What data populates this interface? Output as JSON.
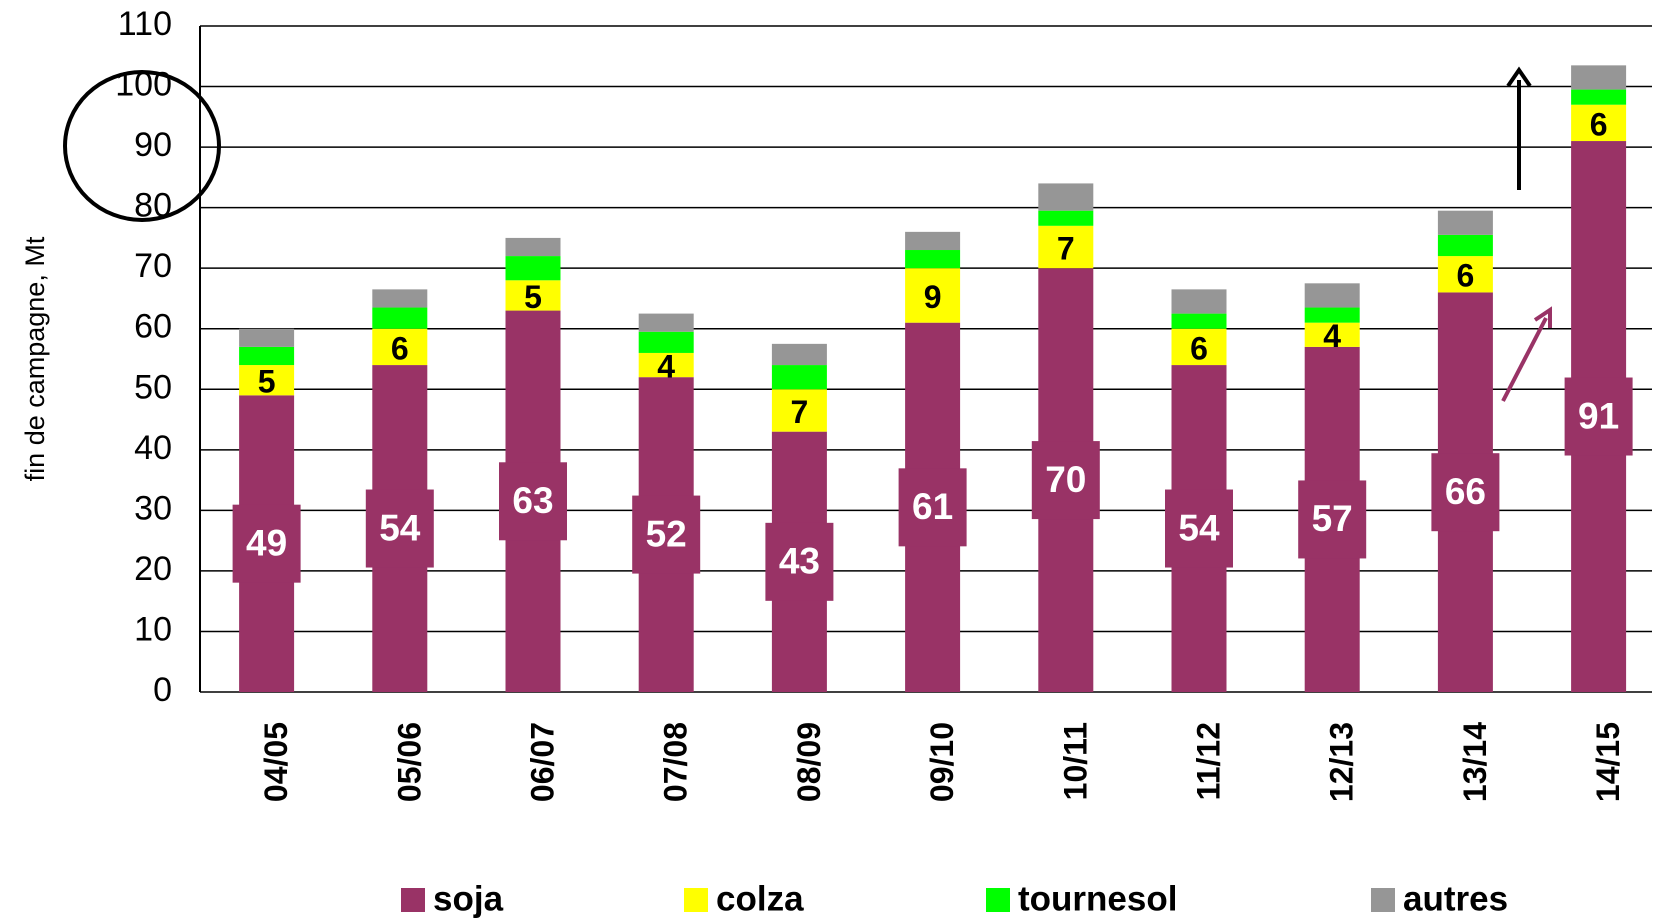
{
  "chart_data": {
    "type": "stacked_bar",
    "y_label": "fin de campagne, Mt",
    "categories": [
      "04/05",
      "05/06",
      "06/07",
      "07/08",
      "08/09",
      "09/10",
      "10/11",
      "11/12",
      "12/13",
      "13/14",
      "14/15"
    ],
    "series": [
      {
        "name": "soja",
        "color": "#993366",
        "show_labels": true,
        "values": [
          49,
          54,
          63,
          52,
          43,
          61,
          70,
          54,
          57,
          66,
          91
        ]
      },
      {
        "name": "colza",
        "color": "#ffff00",
        "show_labels": true,
        "values": [
          5,
          6,
          5,
          4,
          7,
          9,
          7,
          6,
          4,
          6,
          6
        ]
      },
      {
        "name": "tournesol",
        "color": "#00ff00",
        "show_labels": false,
        "values": [
          3,
          3.5,
          4,
          3.5,
          4,
          3,
          2.5,
          2.5,
          2.5,
          3.5,
          2.5
        ]
      },
      {
        "name": "autres",
        "color": "#969696",
        "show_labels": false,
        "values": [
          3,
          3,
          3,
          3,
          3.5,
          3,
          4.5,
          4,
          4,
          4,
          4
        ]
      }
    ],
    "ylim": [
      0,
      110
    ],
    "yticks": [
      0,
      10,
      20,
      30,
      40,
      50,
      60,
      70,
      80,
      90,
      100,
      110
    ],
    "grid": true,
    "legend": "bottom"
  }
}
